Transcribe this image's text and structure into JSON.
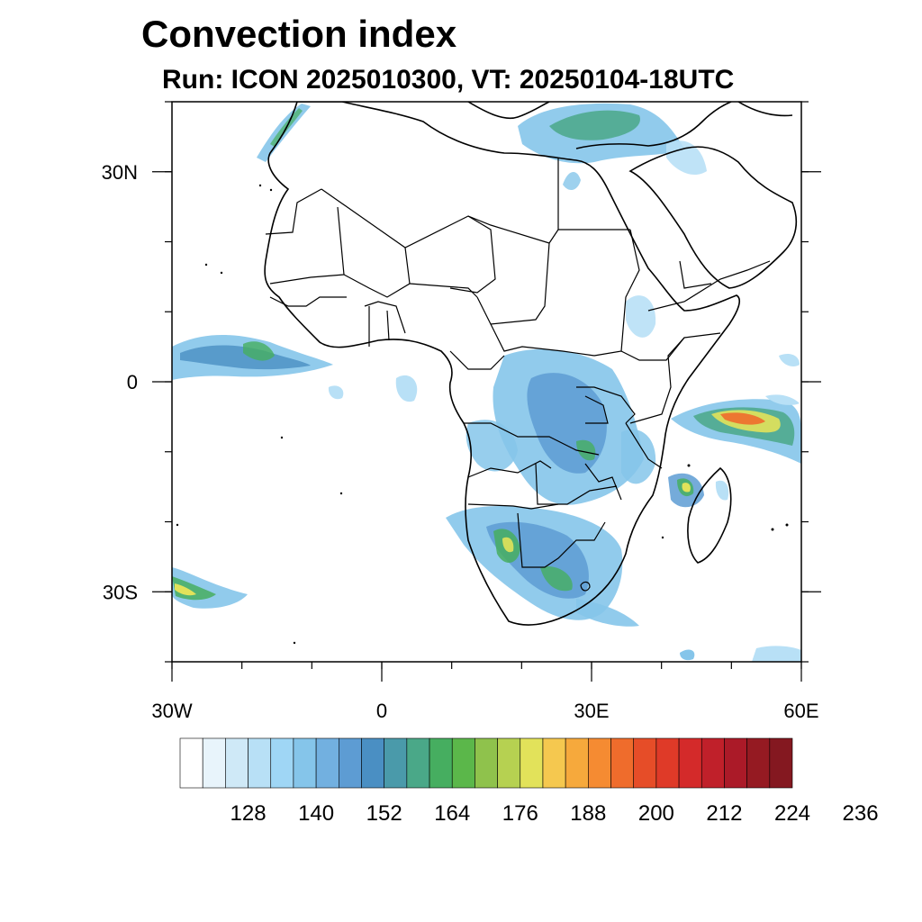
{
  "title": "Convection index",
  "subtitle": "Run: ICON 2025010300,  VT: 20250104-18UTC",
  "map": {
    "lon_range": [
      -30,
      60
    ],
    "lat_range": [
      -40,
      40
    ],
    "lon_ticks": [
      {
        "value": -30,
        "label": "30W"
      },
      {
        "value": 0,
        "label": "0"
      },
      {
        "value": 30,
        "label": "30E"
      },
      {
        "value": 60,
        "label": "60E"
      }
    ],
    "lat_ticks": [
      {
        "value": 30,
        "label": "30N"
      },
      {
        "value": 0,
        "label": "0"
      },
      {
        "value": -30,
        "label": "30S"
      }
    ],
    "minor_lon_step": 10,
    "minor_lat_step": 10
  },
  "colorbar": {
    "colors": [
      "#ffffff",
      "#e8f4fb",
      "#cfe9f7",
      "#b8e0f6",
      "#9fd6f5",
      "#85c5ea",
      "#72b0e0",
      "#5d9cd3",
      "#4a8fc3",
      "#4a9aaa",
      "#4aa888",
      "#46ae60",
      "#5bb74a",
      "#8fc24c",
      "#b6d151",
      "#e2e25a",
      "#f5c84f",
      "#f6a93c",
      "#f58b32",
      "#ef6c2c",
      "#e64d28",
      "#df3a28",
      "#d42a2a",
      "#c0202a",
      "#ab1a28",
      "#951a22",
      "#841820"
    ],
    "labels": [
      "128",
      "140",
      "152",
      "164",
      "176",
      "188",
      "200",
      "212",
      "224",
      "236"
    ]
  },
  "colors": {
    "land_border": "#000000",
    "weak": "#9fd6f5",
    "moderate": "#5d9cd3",
    "strong": "#46ae60",
    "intense": "#e2e25a",
    "extreme": "#e64d28"
  }
}
